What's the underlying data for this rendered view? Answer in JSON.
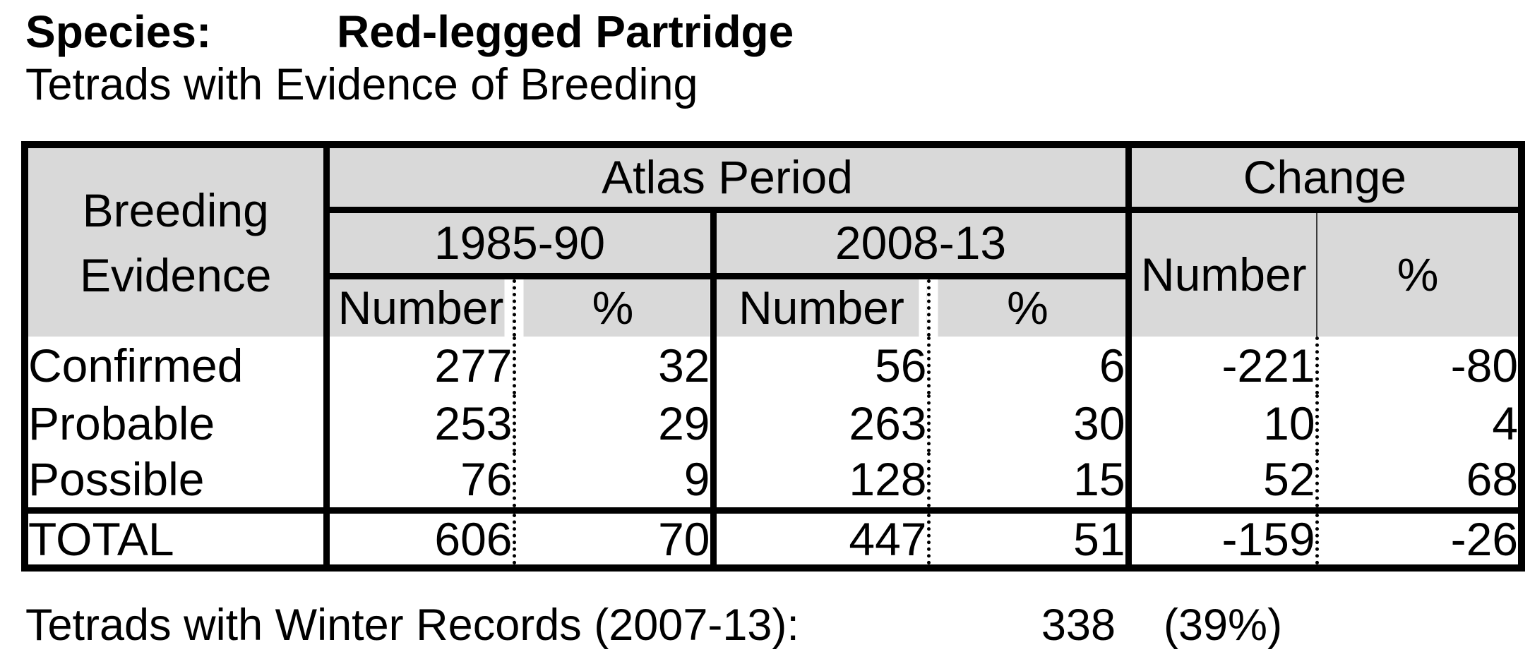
{
  "header": {
    "species_label": "Species:",
    "species_name": "Red-legged Partridge",
    "subtitle": "Tetrads with Evidence of Breeding"
  },
  "table": {
    "corner": {
      "line1": "Breeding",
      "line2": "Evidence"
    },
    "group_headers": {
      "atlas_period": "Atlas Period",
      "change": "Change"
    },
    "period_headers": {
      "period1": "1985-90",
      "period2": "2008-13"
    },
    "sub_headers": {
      "number": "Number",
      "percent": "%"
    },
    "rows": [
      {
        "label": "Confirmed",
        "cells": [
          "277",
          "32",
          "56",
          "6",
          "-221",
          "-80"
        ]
      },
      {
        "label": "Probable",
        "cells": [
          "253",
          "29",
          "263",
          "30",
          "10",
          "4"
        ]
      },
      {
        "label": "Possible",
        "cells": [
          "76",
          "9",
          "128",
          "15",
          "52",
          "68"
        ]
      }
    ],
    "total": {
      "label": "TOTAL",
      "cells": [
        "606",
        "70",
        "447",
        "51",
        "-159",
        "-26"
      ]
    }
  },
  "footer": {
    "winter_label": "Tetrads with Winter Records (2007-13):",
    "winter_count": "338",
    "winter_percent": "(39%)"
  },
  "colors": {
    "header_bg": "#d9d9d9",
    "border": "#000000",
    "background": "#ffffff"
  }
}
